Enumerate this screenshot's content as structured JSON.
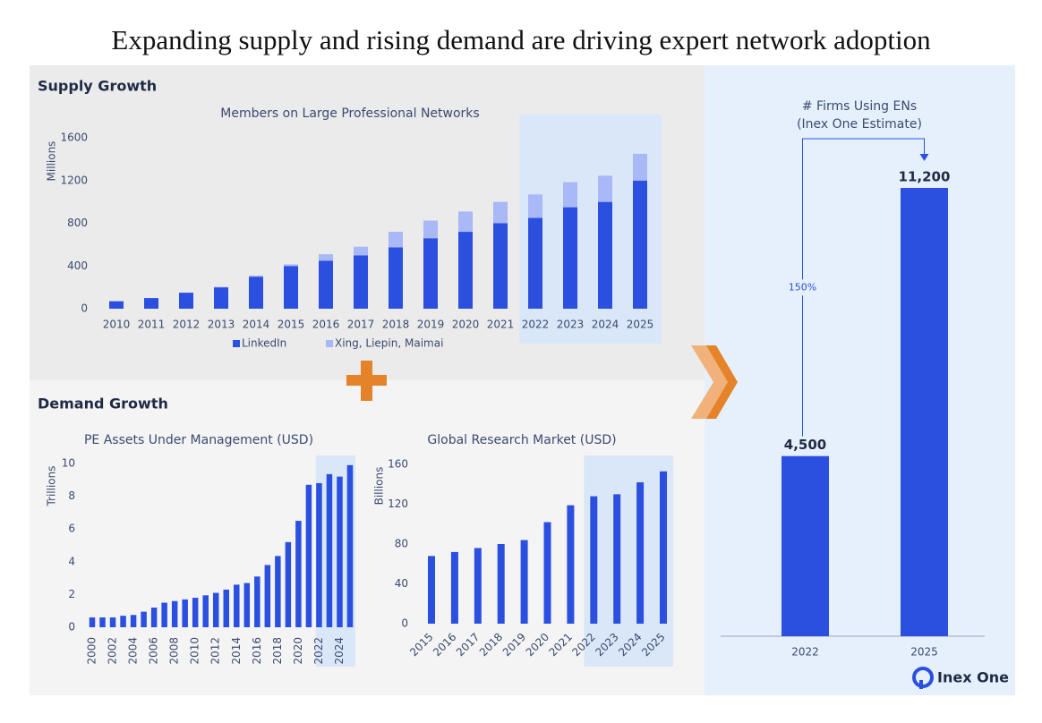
{
  "title": "Expanding supply and rising demand are driving expert network adoption",
  "supply_heading": "Supply Growth",
  "demand_heading": "Demand Growth",
  "logo": "Inex One",
  "chart_data": [
    {
      "type": "bar",
      "stacked": true,
      "title": "Members on Large Professional Networks",
      "ylabel": "Millions",
      "categories": [
        "2010",
        "2011",
        "2012",
        "2013",
        "2014",
        "2015",
        "2016",
        "2017",
        "2018",
        "2019",
        "2020",
        "2021",
        "2022",
        "2023",
        "2024",
        "2025"
      ],
      "series": [
        {
          "name": "LinkedIn",
          "color": "#2b50e0",
          "values": [
            70,
            100,
            150,
            200,
            300,
            400,
            450,
            500,
            575,
            660,
            720,
            800,
            850,
            950,
            1000,
            1200
          ]
        },
        {
          "name": "Xing, Liepin, Maimai",
          "color": "#a9b8f6",
          "values": [
            0,
            0,
            0,
            5,
            10,
            15,
            60,
            80,
            145,
            165,
            190,
            200,
            220,
            235,
            245,
            250
          ]
        }
      ],
      "ylim": [
        0,
        1600
      ],
      "yticks": [
        0,
        400,
        800,
        1200,
        1600
      ],
      "highlight_from": "2022"
    },
    {
      "type": "bar",
      "title": "PE Assets Under Management (USD)",
      "ylabel": "Trillions",
      "color": "#2b50e0",
      "categories": [
        "2000",
        null,
        "2002",
        null,
        "2004",
        null,
        "2006",
        null,
        "2008",
        null,
        "2010",
        null,
        "2012",
        null,
        "2014",
        null,
        "2016",
        null,
        "2018",
        null,
        "2020",
        null,
        "2022",
        null,
        "2024",
        null
      ],
      "values": [
        0.6,
        0.6,
        0.6,
        0.7,
        0.75,
        0.95,
        1.2,
        1.5,
        1.6,
        1.7,
        1.8,
        1.95,
        2.1,
        2.3,
        2.6,
        2.7,
        3.1,
        3.8,
        4.35,
        5.2,
        6.5,
        8.7,
        8.8,
        9.35,
        9.2,
        9.9
      ],
      "ylim": [
        0,
        10
      ],
      "yticks": [
        0,
        2,
        4,
        6,
        8,
        10
      ],
      "highlight_from": "2022"
    },
    {
      "type": "bar",
      "title": "Global Research Market (USD)",
      "ylabel": "Billions",
      "color": "#2b50e0",
      "categories": [
        "2015",
        "2016",
        "2017",
        "2018",
        "2019",
        "2020",
        "2021",
        "2022",
        "2023",
        "2024",
        "2025"
      ],
      "values": [
        68,
        72,
        76,
        80,
        84,
        102,
        119,
        128,
        130,
        142,
        153
      ],
      "ylim": [
        0,
        160
      ],
      "yticks": [
        0,
        40,
        80,
        120,
        160
      ],
      "highlight_from": "2022"
    },
    {
      "type": "bar",
      "title": "# Firms Using ENs",
      "subtitle": "(Inex One Estimate)",
      "color": "#2b50e0",
      "categories": [
        "2022",
        "2025"
      ],
      "values": [
        4500,
        11200
      ],
      "value_labels": [
        "4,500",
        "11,200"
      ],
      "annotation": "150%"
    }
  ]
}
